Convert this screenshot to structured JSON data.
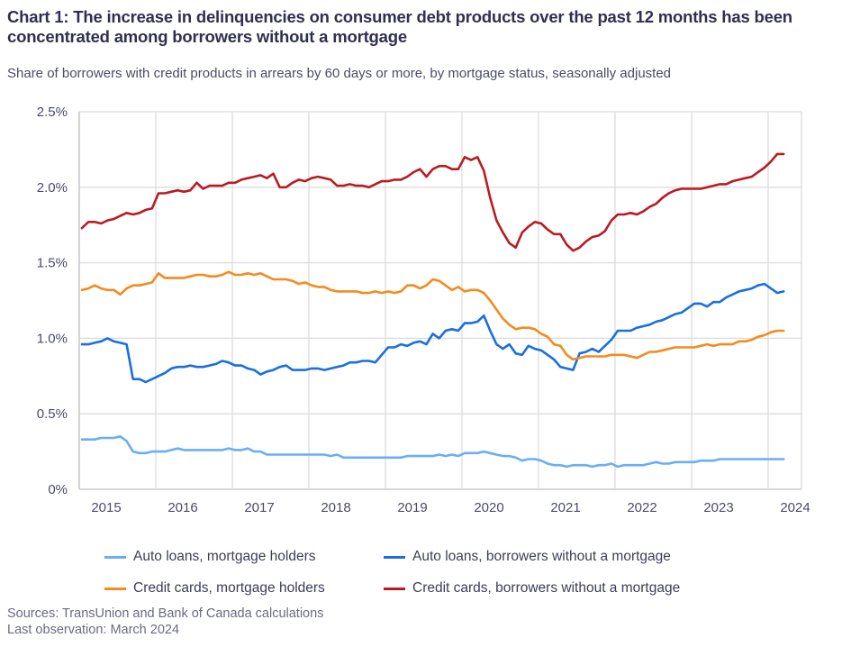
{
  "chart_data": {
    "type": "line",
    "title": "Chart 1: The increase in delinquencies on consumer debt products over the past 12 months has been concentrated among borrowers without a mortgage",
    "subtitle": "Share of borrowers with credit products in arrears by 60 days or more, by mortgage status, seasonally adjusted",
    "xlabel": "",
    "ylabel": "",
    "x_start": "2015-01",
    "x_end": "2024-03",
    "x_frequency": "monthly",
    "x_tick_labels": [
      "2015",
      "2016",
      "2017",
      "2018",
      "2019",
      "2020",
      "2021",
      "2022",
      "2023",
      "2024"
    ],
    "y_tick_labels": [
      "0%",
      "0.5%",
      "1.0%",
      "1.5%",
      "2.0%",
      "2.5%"
    ],
    "y_ticks": [
      0,
      0.5,
      1.0,
      1.5,
      2.0,
      2.5
    ],
    "ylim": [
      0,
      2.5
    ],
    "grid": true,
    "legend_position": "bottom",
    "series": [
      {
        "name": "Auto loans, mortgage holders",
        "color": "#6aaef5",
        "values": [
          0.33,
          0.33,
          0.33,
          0.34,
          0.34,
          0.34,
          0.35,
          0.32,
          0.25,
          0.24,
          0.24,
          0.25,
          0.25,
          0.25,
          0.26,
          0.27,
          0.26,
          0.26,
          0.26,
          0.26,
          0.26,
          0.26,
          0.26,
          0.27,
          0.26,
          0.26,
          0.27,
          0.25,
          0.25,
          0.23,
          0.23,
          0.23,
          0.23,
          0.23,
          0.23,
          0.23,
          0.23,
          0.23,
          0.23,
          0.22,
          0.23,
          0.21,
          0.21,
          0.21,
          0.21,
          0.21,
          0.21,
          0.21,
          0.21,
          0.21,
          0.21,
          0.22,
          0.22,
          0.22,
          0.22,
          0.22,
          0.23,
          0.22,
          0.23,
          0.22,
          0.24,
          0.24,
          0.24,
          0.25,
          0.24,
          0.23,
          0.22,
          0.22,
          0.21,
          0.19,
          0.2,
          0.2,
          0.19,
          0.17,
          0.16,
          0.16,
          0.15,
          0.16,
          0.16,
          0.16,
          0.15,
          0.16,
          0.16,
          0.17,
          0.15,
          0.16,
          0.16,
          0.16,
          0.16,
          0.17,
          0.18,
          0.17,
          0.17,
          0.18,
          0.18,
          0.18,
          0.18,
          0.19,
          0.19,
          0.19,
          0.2,
          0.2,
          0.2,
          0.2,
          0.2,
          0.2,
          0.2,
          0.2,
          0.2,
          0.2,
          0.2
        ]
      },
      {
        "name": "Auto loans, borrowers without a mortgage",
        "color": "#1a6fe0",
        "values": [
          0.96,
          0.96,
          0.97,
          0.98,
          1.0,
          0.98,
          0.97,
          0.96,
          0.73,
          0.73,
          0.71,
          0.73,
          0.75,
          0.77,
          0.8,
          0.81,
          0.81,
          0.82,
          0.81,
          0.81,
          0.82,
          0.83,
          0.85,
          0.84,
          0.82,
          0.82,
          0.8,
          0.79,
          0.76,
          0.78,
          0.79,
          0.81,
          0.82,
          0.79,
          0.79,
          0.79,
          0.8,
          0.8,
          0.79,
          0.8,
          0.81,
          0.82,
          0.84,
          0.84,
          0.85,
          0.85,
          0.84,
          0.89,
          0.94,
          0.94,
          0.96,
          0.95,
          0.97,
          0.98,
          0.96,
          1.03,
          1.0,
          1.05,
          1.06,
          1.05,
          1.1,
          1.1,
          1.11,
          1.15,
          1.05,
          0.96,
          0.93,
          0.96,
          0.9,
          0.89,
          0.95,
          0.93,
          0.92,
          0.89,
          0.86,
          0.81,
          0.8,
          0.79,
          0.9,
          0.91,
          0.93,
          0.91,
          0.95,
          0.99,
          1.05,
          1.05,
          1.05,
          1.07,
          1.08,
          1.09,
          1.11,
          1.12,
          1.14,
          1.16,
          1.17,
          1.2,
          1.23,
          1.23,
          1.21,
          1.24,
          1.24,
          1.27,
          1.29,
          1.31,
          1.32,
          1.33,
          1.35,
          1.36,
          1.33,
          1.3,
          1.31
        ]
      },
      {
        "name": "Credit cards, mortgage holders",
        "color": "#f58a1f",
        "values": [
          1.32,
          1.33,
          1.35,
          1.33,
          1.32,
          1.32,
          1.29,
          1.33,
          1.35,
          1.35,
          1.36,
          1.37,
          1.43,
          1.4,
          1.4,
          1.4,
          1.4,
          1.41,
          1.42,
          1.42,
          1.41,
          1.41,
          1.42,
          1.44,
          1.42,
          1.42,
          1.43,
          1.42,
          1.43,
          1.41,
          1.39,
          1.39,
          1.39,
          1.38,
          1.36,
          1.37,
          1.35,
          1.34,
          1.34,
          1.32,
          1.31,
          1.31,
          1.31,
          1.31,
          1.3,
          1.3,
          1.31,
          1.3,
          1.31,
          1.3,
          1.31,
          1.35,
          1.35,
          1.33,
          1.35,
          1.39,
          1.38,
          1.35,
          1.32,
          1.34,
          1.31,
          1.32,
          1.32,
          1.3,
          1.25,
          1.19,
          1.13,
          1.09,
          1.06,
          1.07,
          1.07,
          1.06,
          1.03,
          1.01,
          0.96,
          0.95,
          0.89,
          0.86,
          0.87,
          0.88,
          0.88,
          0.88,
          0.88,
          0.89,
          0.89,
          0.89,
          0.88,
          0.87,
          0.89,
          0.91,
          0.91,
          0.92,
          0.93,
          0.94,
          0.94,
          0.94,
          0.94,
          0.95,
          0.96,
          0.95,
          0.96,
          0.96,
          0.96,
          0.98,
          0.98,
          0.99,
          1.01,
          1.02,
          1.04,
          1.05,
          1.05
        ]
      },
      {
        "name": "Credit cards, borrowers without a mortgage",
        "color": "#b81c22",
        "values": [
          1.73,
          1.77,
          1.77,
          1.76,
          1.78,
          1.79,
          1.81,
          1.83,
          1.82,
          1.83,
          1.85,
          1.86,
          1.96,
          1.96,
          1.97,
          1.98,
          1.97,
          1.98,
          2.03,
          1.99,
          2.01,
          2.01,
          2.01,
          2.03,
          2.03,
          2.05,
          2.06,
          2.07,
          2.08,
          2.06,
          2.09,
          2.0,
          2.0,
          2.03,
          2.05,
          2.04,
          2.06,
          2.07,
          2.06,
          2.05,
          2.01,
          2.01,
          2.02,
          2.01,
          2.01,
          2.0,
          2.02,
          2.04,
          2.04,
          2.05,
          2.05,
          2.07,
          2.1,
          2.12,
          2.07,
          2.12,
          2.14,
          2.14,
          2.12,
          2.12,
          2.2,
          2.18,
          2.2,
          2.11,
          1.93,
          1.78,
          1.7,
          1.63,
          1.6,
          1.7,
          1.74,
          1.77,
          1.76,
          1.72,
          1.69,
          1.69,
          1.62,
          1.58,
          1.6,
          1.64,
          1.67,
          1.68,
          1.71,
          1.78,
          1.82,
          1.82,
          1.83,
          1.82,
          1.84,
          1.87,
          1.89,
          1.93,
          1.96,
          1.98,
          1.99,
          1.99,
          1.99,
          1.99,
          2.0,
          2.01,
          2.02,
          2.02,
          2.04,
          2.05,
          2.06,
          2.07,
          2.1,
          2.13,
          2.17,
          2.22,
          2.22
        ]
      }
    ]
  },
  "legend": {
    "items": [
      {
        "label": "Auto loans, mortgage holders",
        "color": "#6aaef5"
      },
      {
        "label": "Auto loans, borrowers without a mortgage",
        "color": "#1a6fe0"
      },
      {
        "label": "Credit cards, mortgage holders",
        "color": "#f58a1f"
      },
      {
        "label": "Credit cards, borrowers without a mortgage",
        "color": "#b81c22"
      }
    ]
  },
  "footer": {
    "sources": "Sources: TransUnion and Bank of Canada calculations",
    "last_observation": "Last observation: March 2024"
  }
}
